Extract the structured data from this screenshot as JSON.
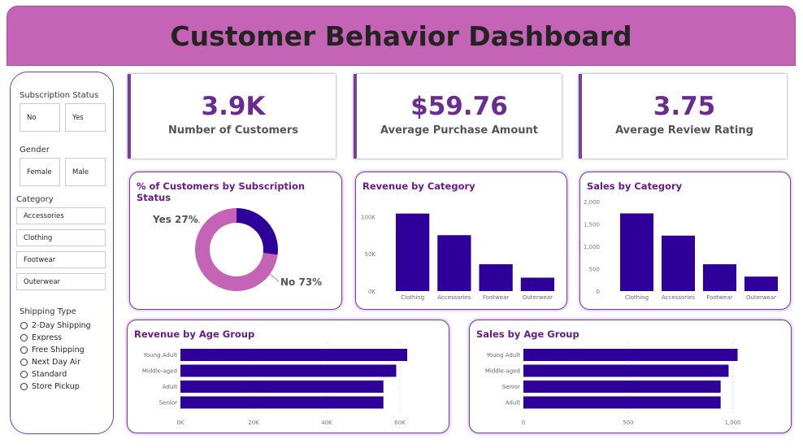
{
  "header": {
    "title": "Customer Behavior Dashboard"
  },
  "colors": {
    "header": "#c563b7",
    "bar": "#2e0099",
    "donut_no": "#c563b7",
    "donut_yes": "#2e0099",
    "title": "#6a1b8a"
  },
  "filters": {
    "subscription": {
      "label": "Subscription Status",
      "options": [
        "No",
        "Yes"
      ]
    },
    "gender": {
      "label": "Gender",
      "options": [
        "Female",
        "Male"
      ]
    },
    "category": {
      "label": "Category",
      "options": [
        "Accessories",
        "Clothing",
        "Footwear",
        "Outerwear"
      ]
    },
    "shipping": {
      "label": "Shipping Type",
      "options": [
        "2-Day Shipping",
        "Express",
        "Free Shipping",
        "Next Day Air",
        "Standard",
        "Store Pickup"
      ]
    }
  },
  "kpis": [
    {
      "value": "3.9K",
      "label": "Number of Customers"
    },
    {
      "value": "$59.76",
      "label": "Average Purchase Amount"
    },
    {
      "value": "3.75",
      "label": "Average Review Rating"
    }
  ],
  "chart_data": [
    {
      "type": "pie",
      "title": "% of Customers by Subscription Status",
      "donut": true,
      "categories": [
        "Yes",
        "No"
      ],
      "values": [
        27,
        73
      ],
      "labels": [
        "Yes 27%",
        "No 73%"
      ]
    },
    {
      "type": "bar",
      "title": "Revenue by Category",
      "categories": [
        "Clothing",
        "Accessories",
        "Footwear",
        "Outerwear"
      ],
      "values": [
        104000,
        75000,
        36000,
        18000
      ],
      "ylim": [
        0,
        120000
      ],
      "ticks": [
        0,
        50000,
        100000
      ],
      "tick_labels": [
        "0K",
        "50K",
        "100K"
      ]
    },
    {
      "type": "bar",
      "title": "Sales by Category",
      "categories": [
        "Clothing",
        "Accessories",
        "Footwear",
        "Outerwear"
      ],
      "values": [
        1737,
        1240,
        600,
        324
      ],
      "ylim": [
        0,
        2000
      ],
      "ticks": [
        0,
        500,
        1000,
        1500,
        2000
      ],
      "tick_labels": [
        "0",
        "500",
        "1,000",
        "1,500",
        "2,000"
      ]
    },
    {
      "type": "bar",
      "orientation": "horizontal",
      "title": "Revenue by Age Group",
      "categories": [
        "Young Adult",
        "Middle-aged",
        "Adult",
        "Senior"
      ],
      "values": [
        62000,
        59000,
        55500,
        55500
      ],
      "xlim": [
        0,
        70000
      ],
      "ticks": [
        0,
        20000,
        40000,
        60000
      ],
      "tick_labels": [
        "0K",
        "20K",
        "40K",
        "60K"
      ]
    },
    {
      "type": "bar",
      "orientation": "horizontal",
      "title": "Sales by Age Group",
      "categories": [
        "Young Adult",
        "Middle-aged",
        "Senior",
        "Adult"
      ],
      "values": [
        1023,
        980,
        942,
        942
      ],
      "xlim": [
        0,
        1250
      ],
      "ticks": [
        0,
        500,
        1000
      ],
      "tick_labels": [
        "0",
        "500",
        "1,000"
      ]
    }
  ]
}
